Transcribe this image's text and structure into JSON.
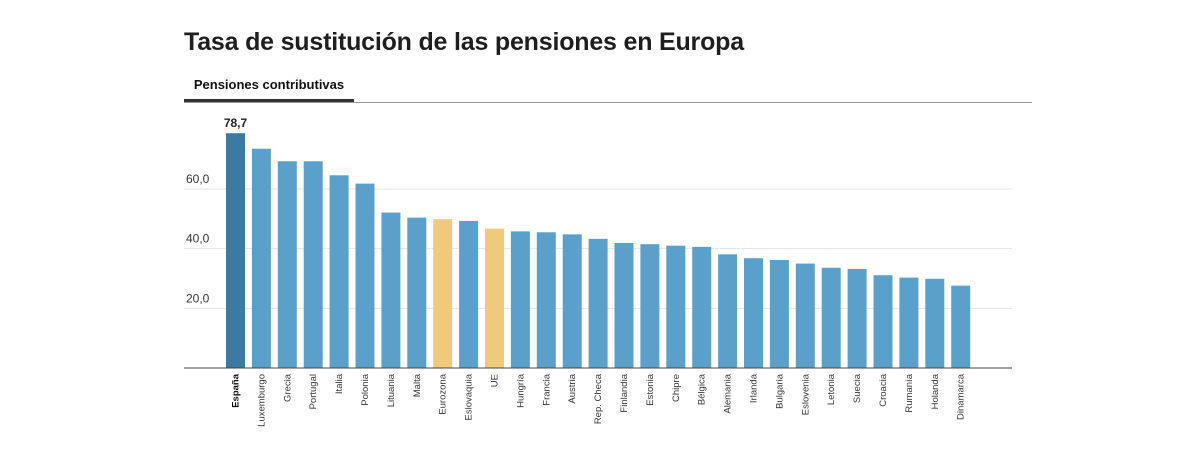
{
  "title": "Tasa de sustitución de las pensiones en Europa",
  "tab_label": "Pensiones contributivas",
  "colors": {
    "highlight": "#3d7aa1",
    "bar": "#5ba0cb",
    "aggregate": "#efca7a",
    "grid": "#e3e3e3",
    "axis": "#444444"
  },
  "chart_data": {
    "type": "bar",
    "title": "Tasa de sustitución de las pensiones en Europa",
    "xlabel": "",
    "ylabel": "",
    "ylim": [
      0,
      80
    ],
    "yticks": [
      20,
      40,
      60
    ],
    "ytick_labels": [
      "20,0",
      "40,0",
      "60,0"
    ],
    "grid": true,
    "categories": [
      "España",
      "Luxemburgo",
      "Grecia",
      "Portugal",
      "Italia",
      "Polonia",
      "Lituania",
      "Malta",
      "Eurozona",
      "Eslovaquia",
      "UE",
      "Hungría",
      "Francia",
      "Austria",
      "Rep. Checa",
      "Finlandia",
      "Estonia",
      "Chipre",
      "Bélgica",
      "Alemania",
      "Irlanda",
      "Bulgaria",
      "Eslovenia",
      "Letonia",
      "Suecia",
      "Croacia",
      "Rumanía",
      "Holanda",
      "Dinamarca"
    ],
    "values": [
      78.7,
      73.5,
      69.3,
      69.3,
      64.6,
      61.8,
      52.1,
      50.4,
      49.9,
      49.3,
      46.7,
      45.8,
      45.5,
      44.8,
      43.3,
      41.9,
      41.5,
      41.0,
      40.6,
      38.1,
      36.8,
      36.2,
      35.0,
      33.6,
      33.2,
      31.1,
      30.3,
      29.9,
      27.6
    ],
    "highlighted": "España",
    "aggregates": [
      "Eurozona",
      "UE"
    ],
    "data_labels": {
      "España": "78,7"
    }
  }
}
